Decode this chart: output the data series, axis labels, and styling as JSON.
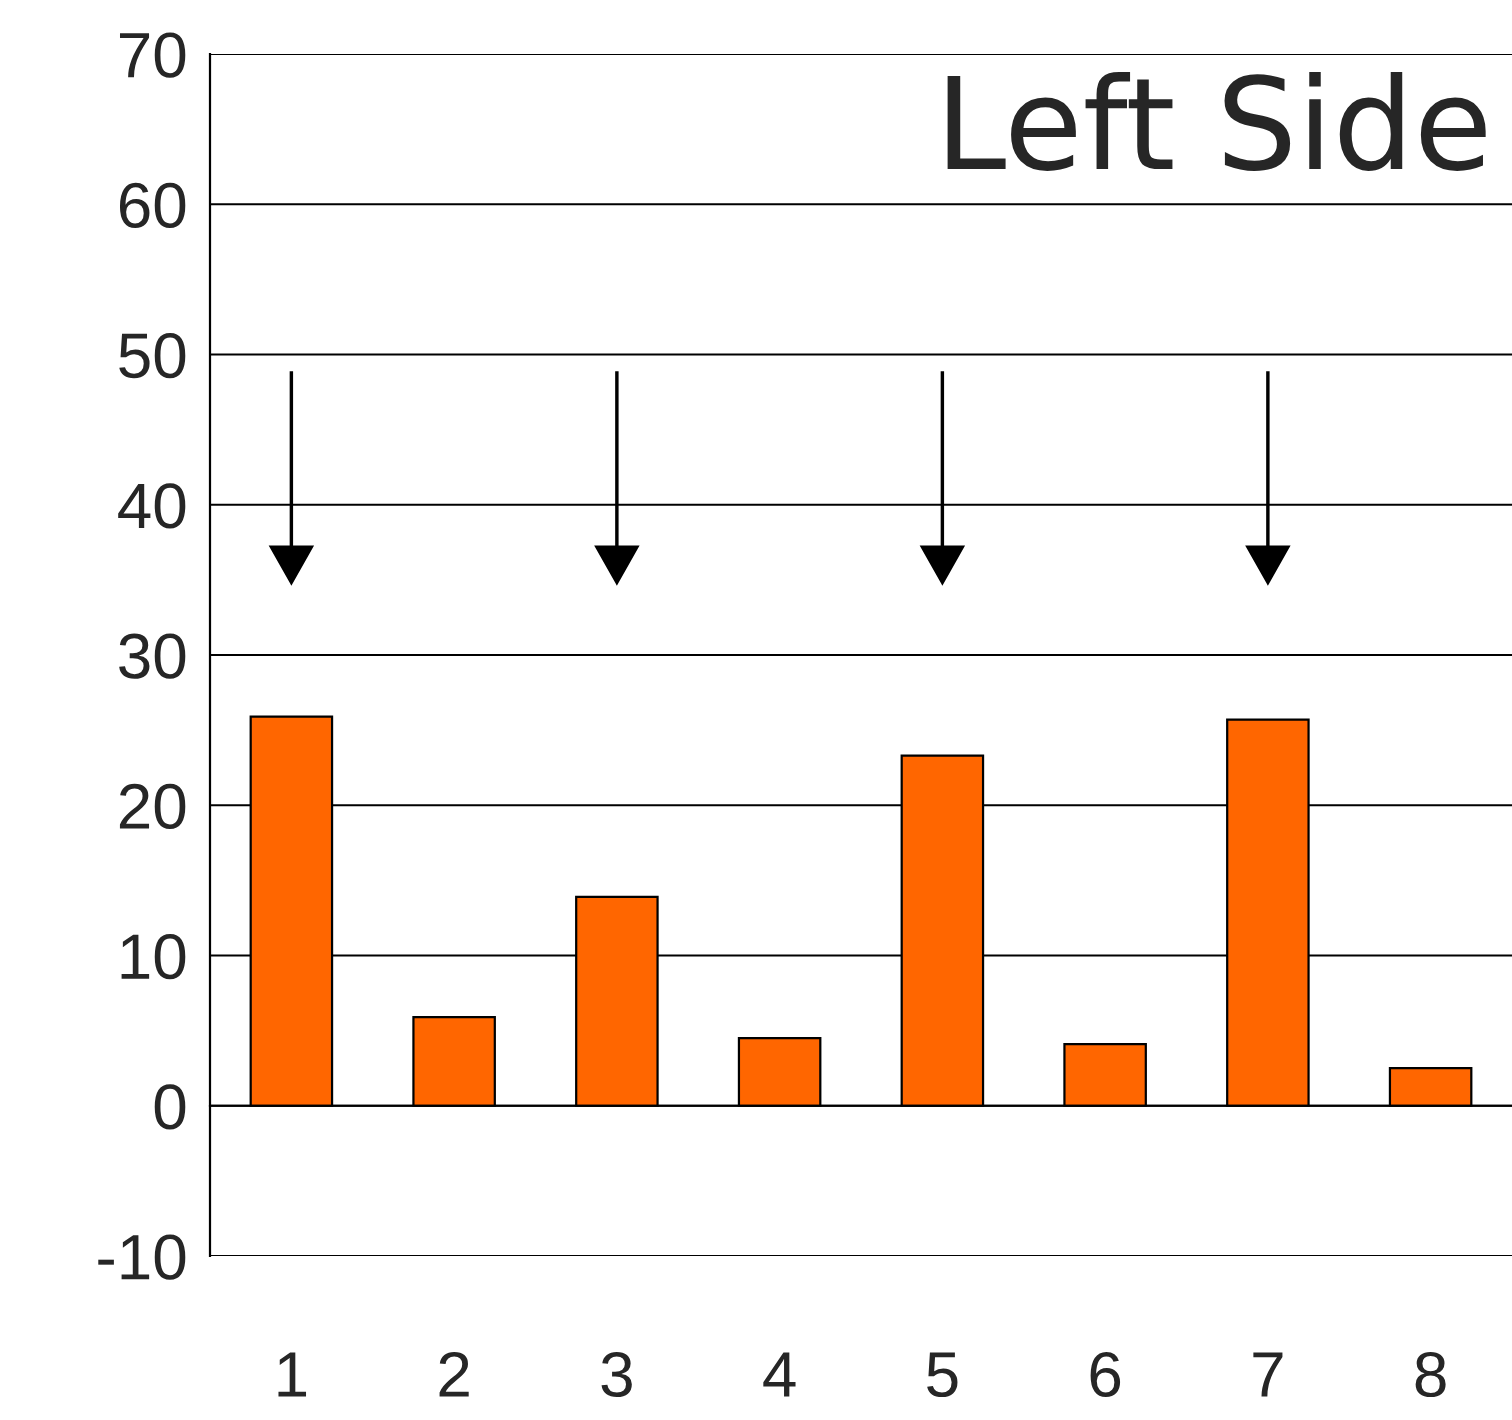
{
  "chart_data": {
    "type": "bar",
    "title": "Left Side",
    "categories": [
      "1",
      "2",
      "3",
      "4",
      "5",
      "6",
      "7",
      "8"
    ],
    "values": [
      25.9,
      5.9,
      13.9,
      4.5,
      23.3,
      4.1,
      25.7,
      2.5
    ],
    "color": "#ff6600",
    "ylim": [
      -10,
      70
    ],
    "yticks": [
      -10,
      0,
      10,
      20,
      30,
      40,
      50,
      60,
      70
    ],
    "grid": "y"
  }
}
